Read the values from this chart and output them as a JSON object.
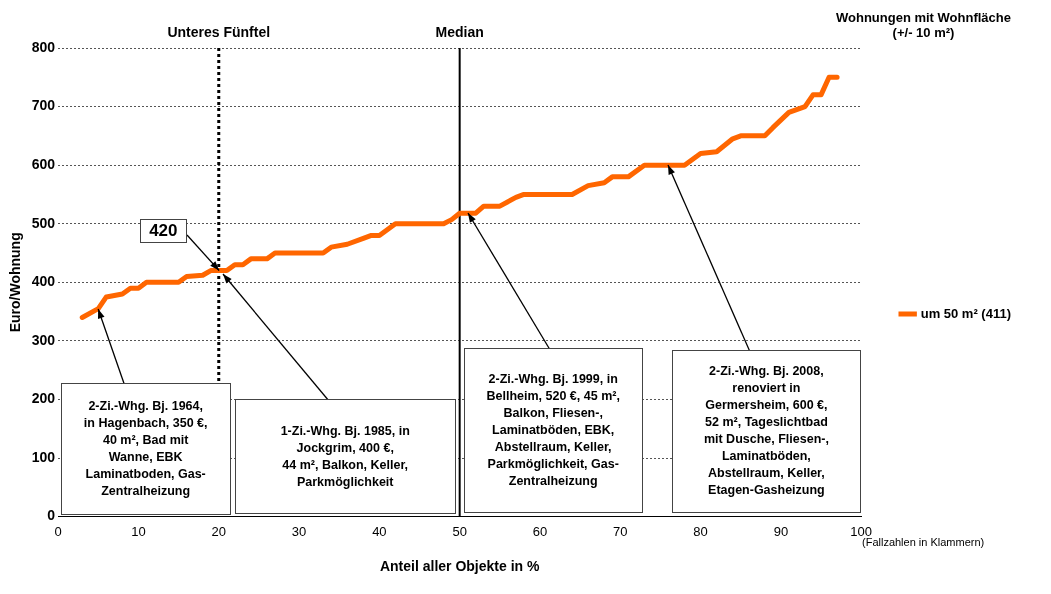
{
  "chart_data": {
    "type": "line",
    "xlabel": "Anteil aller Objekte in %",
    "ylabel": "Euro/Wohnung",
    "legend_title": "Wohnungen mit Wohnfläche\n(+/- 10 m²)",
    "legend": "right",
    "grid": "y",
    "marker": "none",
    "line_style": "solid",
    "xlim": [
      0,
      100
    ],
    "xticks": [
      0,
      10,
      20,
      30,
      40,
      50,
      60,
      70,
      80,
      90,
      100
    ],
    "ylim": [
      0,
      800
    ],
    "yticks": [
      0,
      100,
      200,
      300,
      400,
      500,
      600,
      700,
      800
    ],
    "series": [
      {
        "name": "um 50 m² (411)",
        "color": "#ff6600",
        "x": [
          3,
          5,
          6,
          8,
          9,
          10,
          11,
          15,
          16,
          18,
          19,
          21,
          22,
          23,
          24,
          26,
          27,
          33,
          34,
          36,
          38,
          39,
          40,
          42,
          48,
          49,
          50,
          52,
          53,
          55,
          57,
          58,
          64,
          66,
          68,
          69,
          71,
          73,
          78,
          80,
          82,
          84,
          85,
          88,
          89,
          91,
          93,
          94,
          95,
          96,
          97
        ],
        "values": [
          340,
          355,
          375,
          380,
          390,
          390,
          400,
          400,
          410,
          412,
          420,
          420,
          430,
          430,
          440,
          440,
          450,
          450,
          460,
          465,
          475,
          480,
          480,
          500,
          500,
          507,
          518,
          518,
          530,
          530,
          545,
          550,
          550,
          565,
          570,
          580,
          580,
          600,
          600,
          620,
          623,
          645,
          650,
          650,
          664,
          690,
          700,
          720,
          720,
          750,
          750
        ]
      }
    ],
    "ref_lines": [
      {
        "axis": "x",
        "value": 20,
        "label": "Unteres Fünftel",
        "line_style": "dotted"
      },
      {
        "axis": "x",
        "value": 50,
        "label": "Median",
        "line_style": "solid"
      }
    ],
    "annotations": [
      {
        "text": "420",
        "x": 20,
        "y": 420
      },
      {
        "text": "2-Zi.-Whg. Bj. 1964,\nin Hagenbach, 350 €,\n40 m², Bad mit\nWanne, EBK\nLaminatboden, Gas-\nZentralheizung",
        "x": 5,
        "y": 355
      },
      {
        "text": "1-Zi.-Whg. Bj. 1985, in\nJockgrim, 400 €,\n44 m², Balkon, Keller,\nParkmöglichkeit",
        "x": 20.5,
        "y": 415
      },
      {
        "text": "2-Zi.-Whg. Bj. 1999, in\nBellheim, 520 €, 45 m²,\nBalkon, Fliesen-,\nLaminatböden, EBK,\nAbstellraum, Keller,\nParkmöglichkeit, Gas-\nZentralheizung",
        "x": 51,
        "y": 518
      },
      {
        "text": "2-Zi.-Whg. Bj. 2008,\nrenoviert in\nGermersheim, 600 €,\n52 m²,  Tageslichtbad\nmit Dusche, Fliesen-,\nLaminatböden,\nAbstellraum, Keller,\nEtagen-Gasheizung",
        "x": 76,
        "y": 600
      },
      "(Fallzahlen in Klammern)"
    ]
  }
}
